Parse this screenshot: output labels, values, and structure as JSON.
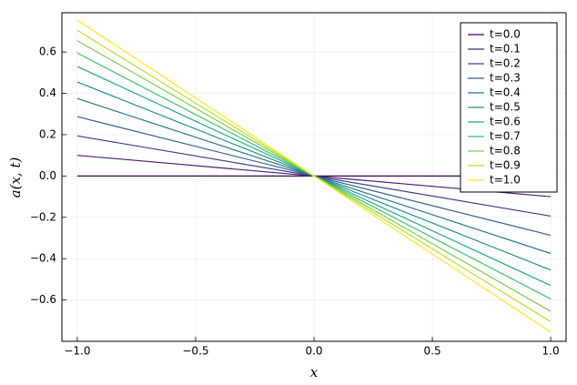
{
  "chart_data": {
    "type": "line",
    "xlabel": "x",
    "ylabel": "a(x, t)",
    "x": [
      -1,
      1
    ],
    "series": [
      {
        "name": "t=0.0",
        "color": "#440154",
        "values": [
          0,
          0
        ]
      },
      {
        "name": "t=0.1",
        "color": "#482475",
        "values": [
          0.1,
          -0.1
        ]
      },
      {
        "name": "t=0.2",
        "color": "#414487",
        "values": [
          0.194,
          -0.194
        ]
      },
      {
        "name": "t=0.3",
        "color": "#355f8d",
        "values": [
          0.287,
          -0.287
        ]
      },
      {
        "name": "t=0.4",
        "color": "#2a788e",
        "values": [
          0.375,
          -0.375
        ]
      },
      {
        "name": "t=0.5",
        "color": "#21918c",
        "values": [
          0.455,
          -0.455
        ]
      },
      {
        "name": "t=0.6",
        "color": "#22a884",
        "values": [
          0.53,
          -0.53
        ]
      },
      {
        "name": "t=0.7",
        "color": "#44bf70",
        "values": [
          0.595,
          -0.595
        ]
      },
      {
        "name": "t=0.8",
        "color": "#7ad151",
        "values": [
          0.655,
          -0.655
        ]
      },
      {
        "name": "t=0.9",
        "color": "#bddf26",
        "values": [
          0.705,
          -0.705
        ]
      },
      {
        "name": "t=1.0",
        "color": "#fde725",
        "values": [
          0.755,
          -0.755
        ]
      }
    ],
    "xlim": [
      -1.065,
      1.065
    ],
    "ylim": [
      -0.8,
      0.79
    ],
    "xticks": [
      {
        "value": -1,
        "label": "−1.0"
      },
      {
        "value": -0.5,
        "label": "−0.5"
      },
      {
        "value": 0,
        "label": "0.0"
      },
      0.5,
      {
        "value": 1,
        "label": "1.0"
      }
    ],
    "yticks": [
      {
        "value": -0.6,
        "label": "−0.6"
      },
      {
        "value": -0.4,
        "label": "−0.4"
      },
      {
        "value": -0.2,
        "label": "−0.2"
      },
      {
        "value": 0,
        "label": "0.0"
      },
      0.2,
      0.4,
      0.6
    ],
    "grid": true,
    "legend": "upper right"
  }
}
